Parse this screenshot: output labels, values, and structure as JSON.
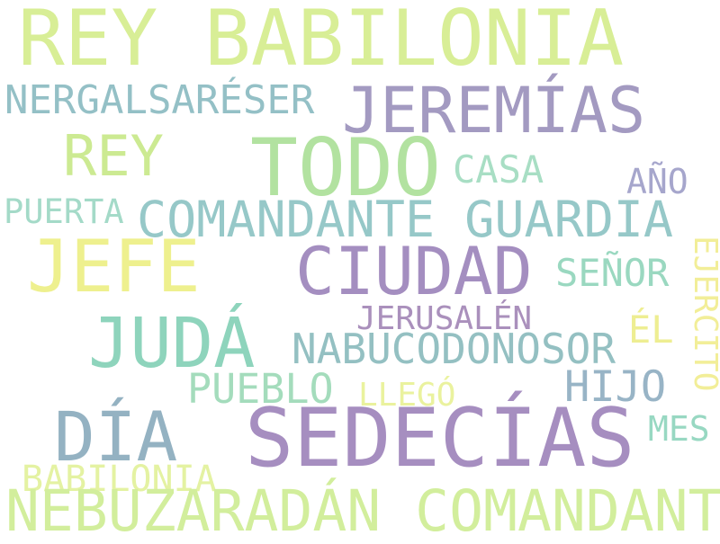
{
  "words": [
    {
      "text": "REY BABILONIA",
      "color": "#d8ee96"
    },
    {
      "text": "NERGALSARÉSER",
      "color": "#94c0c6"
    },
    {
      "text": "JEREMÍAS",
      "color": "#a39ac1"
    },
    {
      "text": "REY",
      "color": "#ccea92"
    },
    {
      "text": "TODO",
      "color": "#b2e2a0"
    },
    {
      "text": "CASA",
      "color": "#a8dec4"
    },
    {
      "text": "AÑO",
      "color": "#a6a6cc"
    },
    {
      "text": "PUERTA",
      "color": "#a4dac8"
    },
    {
      "text": "COMANDANTE GUARDIA",
      "color": "#96c8c8"
    },
    {
      "text": "JEFE",
      "color": "#eef08e"
    },
    {
      "text": "CIUDAD",
      "color": "#a48ec0"
    },
    {
      "text": "SEÑOR",
      "color": "#9ad8c0"
    },
    {
      "text": "EJÉRCITO",
      "color": "#f2ee98"
    },
    {
      "text": "JERUSALÉN",
      "color": "#aa90bc"
    },
    {
      "text": "JUDÁ",
      "color": "#8ed4bc"
    },
    {
      "text": "NABUCODONOSOR",
      "color": "#94c0c2"
    },
    {
      "text": "ÉL",
      "color": "#eeee92"
    },
    {
      "text": "PUEBLO",
      "color": "#a4dcbc"
    },
    {
      "text": "LLEGÓ",
      "color": "#eaf29e"
    },
    {
      "text": "HIJO",
      "color": "#98b4c6"
    },
    {
      "text": "DÍA",
      "color": "#94b2c2"
    },
    {
      "text": "SEDECÍAS",
      "color": "#a68ec0"
    },
    {
      "text": "MES",
      "color": "#98d8c2"
    },
    {
      "text": "BABILONIA",
      "color": "#e4f2a2"
    },
    {
      "text": "NEBUZARADÁN COMANDANTE",
      "color": "#d2ee9c"
    }
  ]
}
